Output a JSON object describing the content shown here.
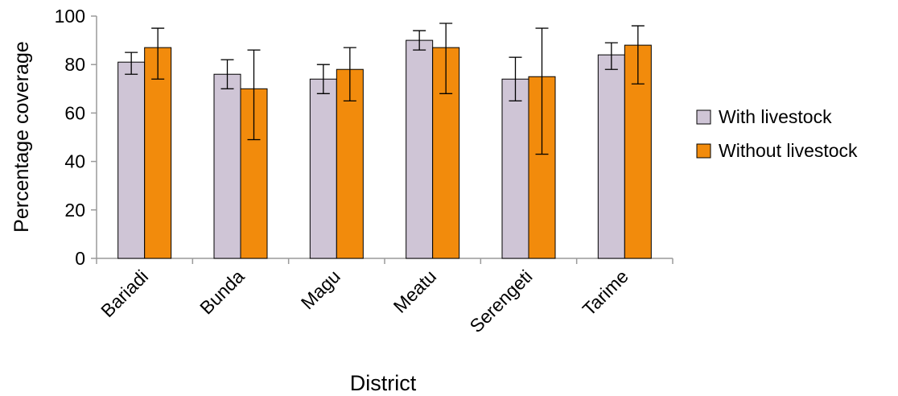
{
  "chart_data": {
    "type": "bar",
    "categories": [
      "Bariadi",
      "Bunda",
      "Magu",
      "Meatu",
      "Serengeti",
      "Tarime"
    ],
    "series": [
      {
        "name": "With livestock",
        "color": "#CFC5D6",
        "values": [
          81,
          76,
          74,
          90,
          74,
          84
        ],
        "error_low": [
          76,
          70,
          68,
          86,
          65,
          78
        ],
        "error_high": [
          85,
          82,
          80,
          94,
          83,
          89
        ]
      },
      {
        "name": "Without livestock",
        "color": "#F28B0C",
        "values": [
          87,
          70,
          78,
          87,
          75,
          88
        ],
        "error_low": [
          74,
          49,
          65,
          68,
          43,
          72
        ],
        "error_high": [
          95,
          86,
          87,
          97,
          95,
          96
        ]
      }
    ],
    "xlabel": "District",
    "ylabel": "Percentage coverage",
    "ylim": [
      0,
      100
    ],
    "yticks": [
      "0",
      "20",
      "40",
      "60",
      "80",
      "100"
    ],
    "legend_position": "right",
    "grid": false
  }
}
